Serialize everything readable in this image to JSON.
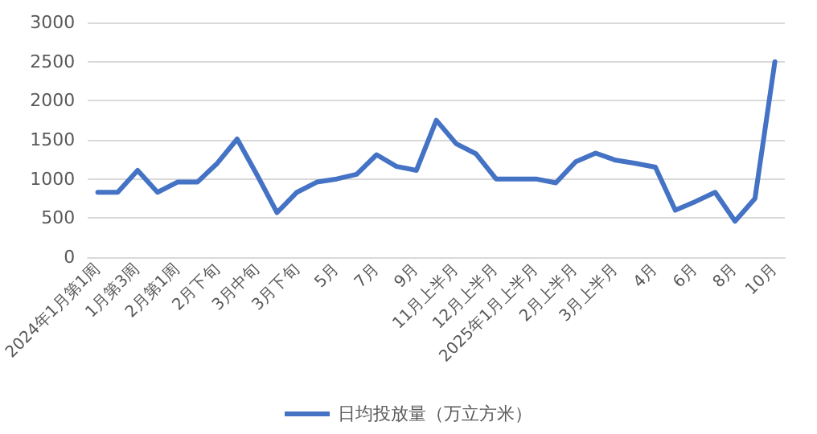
{
  "chart_data": {
    "type": "line",
    "categories": [
      "2024年1月第1周",
      null,
      "1月第3周",
      null,
      "2月第1周",
      null,
      "2月下旬",
      null,
      "3月中旬",
      null,
      "3月下旬",
      null,
      "5月",
      null,
      "7月",
      null,
      "9月",
      null,
      "11月上半月",
      null,
      "12月上半月",
      null,
      "2025年1月上半月",
      null,
      "2月上半月",
      null,
      "3月上半月",
      null,
      "4月",
      null,
      "6月",
      null,
      "8月",
      null,
      "10月"
    ],
    "series": [
      {
        "name": "日均投放量（万立方米）",
        "color": "#4472c4",
        "values": [
          830,
          830,
          1110,
          830,
          960,
          960,
          1200,
          1510,
          1050,
          570,
          830,
          960,
          1000,
          1060,
          1310,
          1160,
          1110,
          1750,
          1450,
          1320,
          1000,
          1000,
          1000,
          950,
          1220,
          1330,
          1240,
          1200,
          1150,
          600,
          710,
          830,
          460,
          750,
          2500
        ]
      }
    ],
    "ylim": [
      0,
      3000
    ],
    "yticks": [
      0,
      500,
      1000,
      1500,
      2000,
      2500,
      3000
    ],
    "grid": "y",
    "legend": "bottom",
    "marker": "none",
    "line_style": "solid"
  }
}
